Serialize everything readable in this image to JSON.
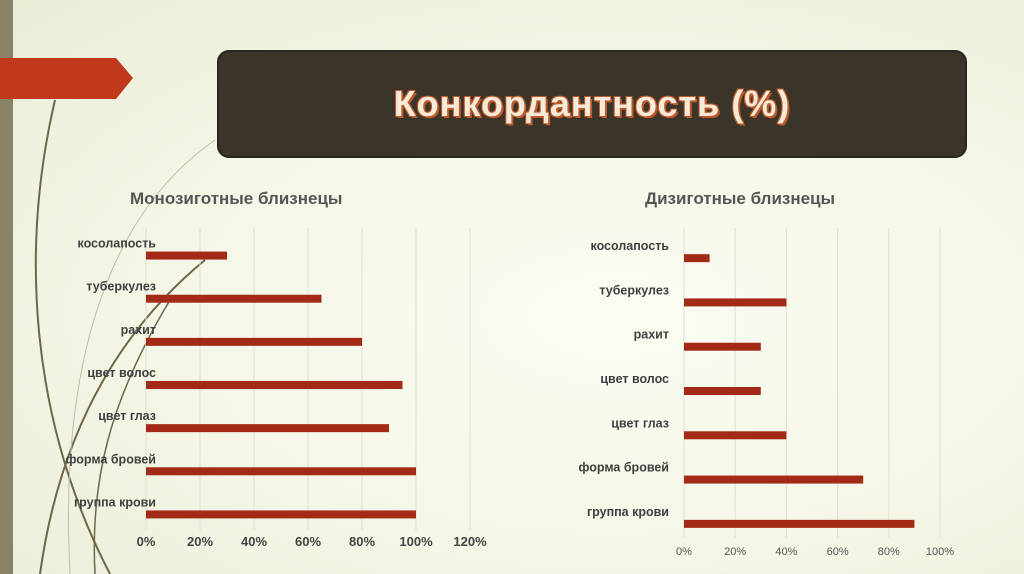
{
  "slide": {
    "title": "Конкордантность (%)"
  },
  "colors": {
    "bar": "#a32a16",
    "title_bg": "#3b3429",
    "accent_arrow": "#c0391d"
  },
  "chart_data": [
    {
      "type": "bar",
      "orientation": "horizontal",
      "title": "Монозиготные близнецы",
      "categories": [
        "косолапость",
        "туберкулез",
        "рахит",
        "цвет волос",
        "цвет глаз",
        "форма бровей",
        "группа крови"
      ],
      "values": [
        30,
        65,
        80,
        95,
        90,
        100,
        100
      ],
      "xlim": [
        0,
        120
      ],
      "ticks": [
        "0%",
        "20%",
        "40%",
        "60%",
        "80%",
        "100%",
        "120%"
      ],
      "grid": true
    },
    {
      "type": "bar",
      "orientation": "horizontal",
      "title": "Дизиготные близнецы",
      "categories": [
        "косолапость",
        "туберкулез",
        "рахит",
        "цвет волос",
        "цвет глаз",
        "форма бровей",
        "группа крови"
      ],
      "values": [
        10,
        40,
        30,
        30,
        40,
        70,
        90
      ],
      "xlim": [
        0,
        100
      ],
      "ticks": [
        "0%",
        "20%",
        "40%",
        "60%",
        "80%",
        "100%"
      ],
      "grid": true
    }
  ]
}
